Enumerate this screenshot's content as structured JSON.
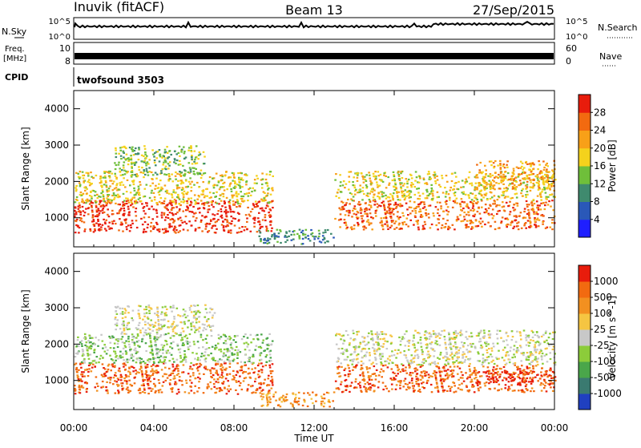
{
  "header": {
    "station": "Inuvik (fitACF)",
    "beam": "Beam 13",
    "date": "27/Sep/2015"
  },
  "noise_panel": {
    "left_label": "N.Sky",
    "left_ticks": [
      "10^5",
      "10^0"
    ],
    "right_label": "N.Search",
    "right_ticks": [
      "10^5",
      "10^0"
    ]
  },
  "freq_panel": {
    "label_line1": "Freq.",
    "label_line2": "[MHz]",
    "left_ticks": [
      "10",
      "8"
    ],
    "right_label": "Nave",
    "right_ticks": [
      "60",
      "0"
    ]
  },
  "cpid": {
    "label": "CPID",
    "value": "twofsound 3503"
  },
  "chart_data": [
    {
      "type": "heatmap",
      "title": "",
      "xlabel": "Time UT",
      "ylabel": "Slant Range [km]",
      "x_ticks": [
        "00:00",
        "04:00",
        "08:00",
        "12:00",
        "16:00",
        "20:00",
        "00:00"
      ],
      "y_ticks": [
        1000,
        2000,
        3000,
        4000
      ],
      "ylim": [
        200,
        4500
      ],
      "colorbar_label": "Power [dB]",
      "colorbar_ticks": [
        "4",
        "8",
        "12",
        "16",
        "20",
        "24",
        "28"
      ],
      "colorscale": [
        "#1f1fff",
        "#2a58b8",
        "#3f8a6e",
        "#6fbf3a",
        "#f4d21c",
        "#f8a018",
        "#f26a10",
        "#e81c0c"
      ],
      "regions": [
        {
          "t0": 0.0,
          "t1": 9.9,
          "r0": 600,
          "r1": 1500,
          "level": 7
        },
        {
          "t0": 0.0,
          "t1": 9.9,
          "r0": 1400,
          "r1": 2300,
          "level": 4
        },
        {
          "t0": 2.0,
          "t1": 6.5,
          "r0": 2200,
          "r1": 3000,
          "level": 3
        },
        {
          "t0": 9.2,
          "t1": 13.0,
          "r0": 300,
          "r1": 700,
          "level": 2
        },
        {
          "t0": 13.0,
          "t1": 24.0,
          "r0": 700,
          "r1": 1500,
          "level": 6
        },
        {
          "t0": 13.0,
          "t1": 24.0,
          "r0": 1500,
          "r1": 2300,
          "level": 4
        },
        {
          "t0": 20.0,
          "t1": 24.0,
          "r0": 1800,
          "r1": 2600,
          "level": 5
        }
      ]
    },
    {
      "type": "heatmap",
      "title": "",
      "xlabel": "Time UT",
      "ylabel": "Slant Range [km]",
      "x_ticks": [
        "00:00",
        "04:00",
        "08:00",
        "12:00",
        "16:00",
        "20:00",
        "00:00"
      ],
      "y_ticks": [
        1000,
        2000,
        3000,
        4000
      ],
      "ylim": [
        200,
        4500
      ],
      "colorbar_label": "Velocity [m s^-1]",
      "colorbar_ticks": [
        "1000",
        "500",
        "100",
        "25",
        "-25",
        "-100",
        "-500",
        "-1000"
      ],
      "colorscale": [
        "#2040c0",
        "#3a7a70",
        "#4aa64a",
        "#8ccc3a",
        "#c8c8c8",
        "#f5c542",
        "#f29020",
        "#f26a10",
        "#e81c0c"
      ],
      "regions": [
        {
          "t0": 0.0,
          "t1": 9.9,
          "r0": 650,
          "r1": 1500,
          "level": 7
        },
        {
          "t0": 0.0,
          "t1": 9.9,
          "r0": 1500,
          "r1": 2300,
          "level": 3
        },
        {
          "t0": 2.0,
          "t1": 7.0,
          "r0": 2300,
          "r1": 3100,
          "level": 4
        },
        {
          "t0": 9.2,
          "t1": 13.0,
          "r0": 300,
          "r1": 700,
          "level": 6
        },
        {
          "t0": 13.0,
          "t1": 24.0,
          "r0": 700,
          "r1": 1450,
          "level": 7
        },
        {
          "t0": 13.0,
          "t1": 24.0,
          "r0": 1450,
          "r1": 2400,
          "level": 4
        },
        {
          "t0": 20.0,
          "t1": 24.0,
          "r0": 900,
          "r1": 1300,
          "level": 8
        }
      ]
    }
  ]
}
